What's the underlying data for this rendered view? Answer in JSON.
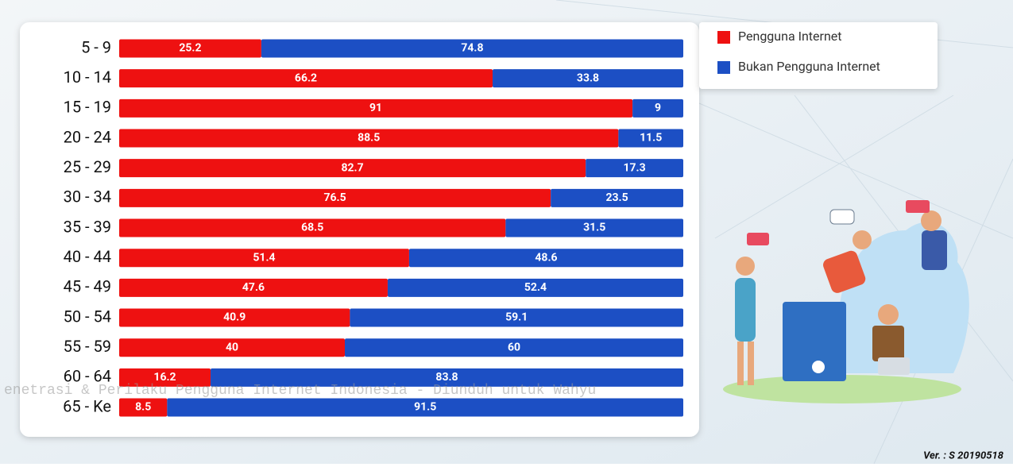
{
  "chart_data": {
    "type": "stacked-bar-horizontal",
    "categories": [
      "5 - 9",
      "10 - 14",
      "15 - 19",
      "20 - 24",
      "25 - 29",
      "30 - 34",
      "35 - 39",
      "40 - 44",
      "45 - 49",
      "50 - 54",
      "55 - 59",
      "60 - 64",
      "65 - Ke"
    ],
    "series": [
      {
        "name": "Pengguna Internet",
        "color": "#ee1111",
        "values": [
          25.2,
          66.2,
          91,
          88.5,
          82.7,
          76.5,
          68.5,
          51.4,
          47.6,
          40.9,
          40,
          16.2,
          8.5
        ]
      },
      {
        "name": "Bukan Pengguna Internet",
        "color": "#1c4fc4",
        "values": [
          74.8,
          33.8,
          9,
          11.5,
          17.3,
          23.5,
          31.5,
          48.6,
          52.4,
          59.1,
          60,
          83.8,
          91.5
        ]
      }
    ],
    "xlim": [
      0,
      100
    ],
    "legend": "top-right",
    "watermark": "enetrasi & Perilaku Pengguna Internet Indonesia - Diunduh untuk Wahyu",
    "version": "Ver. : S 20190518"
  }
}
